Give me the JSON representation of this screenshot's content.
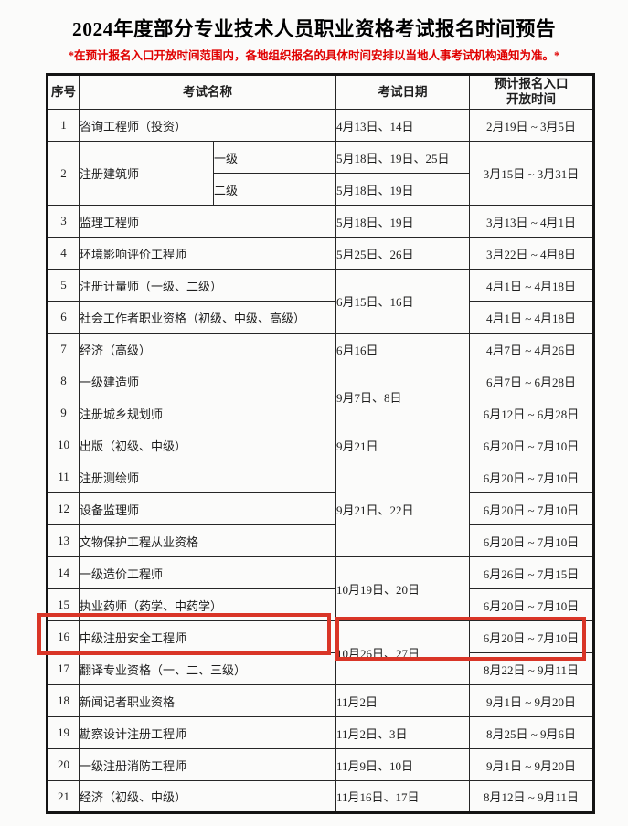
{
  "page": {
    "title": "2024年度部分专业技术人员职业资格考试报名时间预告",
    "note": "*在预计报名入口开放时间范围内，各地组织报名的具体时间安排以当地人事考试机构通知为准。*"
  },
  "colors": {
    "note_red": "#e00000",
    "highlight_red": "#d93527",
    "border_black": "#141414"
  },
  "annotations": {
    "highlighted_row_number": "16",
    "highlighted_exam": "中级注册安全工程师",
    "highlight_style": "red rectangle boxes"
  },
  "table": {
    "headers": [
      {
        "key": "index",
        "text": "序号"
      },
      {
        "key": "exam-name",
        "text": "考试名称",
        "colspan": 2
      },
      {
        "key": "exam-date",
        "text": "考试日期"
      },
      {
        "key": "registration-window",
        "text": "预计报名入口\n开放时间"
      }
    ],
    "rows": [
      {
        "cells": [
          {
            "kind": "num",
            "text": "1"
          },
          {
            "kind": "name",
            "text": "咨询工程师（投资）",
            "colspan": 2
          },
          {
            "kind": "date",
            "text": "4月13日、14日"
          },
          {
            "kind": "reg",
            "text": "2月19日 ~ 3月5日"
          }
        ]
      },
      {
        "cells": [
          {
            "kind": "num",
            "text": "2",
            "rowspan": 2
          },
          {
            "kind": "name",
            "text": "注册建筑师",
            "rowspan": 2
          },
          {
            "kind": "level",
            "text": "一级"
          },
          {
            "kind": "date",
            "text": "5月18日、19日、25日"
          },
          {
            "kind": "reg",
            "text": "3月15日 ~ 3月31日",
            "rowspan": 2
          }
        ]
      },
      {
        "cells": [
          {
            "kind": "level",
            "text": "二级"
          },
          {
            "kind": "date",
            "text": "5月18日、19日"
          }
        ]
      },
      {
        "cells": [
          {
            "kind": "num",
            "text": "3"
          },
          {
            "kind": "name",
            "text": "监理工程师",
            "colspan": 2
          },
          {
            "kind": "date",
            "text": "5月18日、19日"
          },
          {
            "kind": "reg",
            "text": "3月13日 ~ 4月1日"
          }
        ]
      },
      {
        "cells": [
          {
            "kind": "num",
            "text": "4"
          },
          {
            "kind": "name",
            "text": "环境影响评价工程师",
            "colspan": 2
          },
          {
            "kind": "date",
            "text": "5月25日、26日"
          },
          {
            "kind": "reg",
            "text": "3月22日 ~ 4月8日"
          }
        ]
      },
      {
        "cells": [
          {
            "kind": "num",
            "text": "5"
          },
          {
            "kind": "name",
            "text": "注册计量师（一级、二级）",
            "colspan": 2
          },
          {
            "kind": "date",
            "text": "6月15日、16日",
            "rowspan": 2
          },
          {
            "kind": "reg",
            "text": "4月1日 ~ 4月18日"
          }
        ]
      },
      {
        "cells": [
          {
            "kind": "num",
            "text": "6"
          },
          {
            "kind": "name",
            "text": "社会工作者职业资格（初级、中级、高级）",
            "colspan": 2
          },
          {
            "kind": "reg",
            "text": "4月1日 ~ 4月18日"
          }
        ]
      },
      {
        "cells": [
          {
            "kind": "num",
            "text": "7"
          },
          {
            "kind": "name",
            "text": "经济（高级）",
            "colspan": 2
          },
          {
            "kind": "date",
            "text": "6月16日"
          },
          {
            "kind": "reg",
            "text": "4月7日 ~ 4月26日"
          }
        ]
      },
      {
        "cells": [
          {
            "kind": "num",
            "text": "8"
          },
          {
            "kind": "name",
            "text": "一级建造师",
            "colspan": 2
          },
          {
            "kind": "date",
            "text": "9月7日、8日",
            "rowspan": 2
          },
          {
            "kind": "reg",
            "text": "6月7日 ~ 6月28日"
          }
        ]
      },
      {
        "cells": [
          {
            "kind": "num",
            "text": "9"
          },
          {
            "kind": "name",
            "text": "注册城乡规划师",
            "colspan": 2
          },
          {
            "kind": "reg",
            "text": "6月12日 ~ 6月28日"
          }
        ]
      },
      {
        "cells": [
          {
            "kind": "num",
            "text": "10"
          },
          {
            "kind": "name",
            "text": "出版（初级、中级）",
            "colspan": 2
          },
          {
            "kind": "date",
            "text": "9月21日"
          },
          {
            "kind": "reg",
            "text": "6月20日 ~ 7月10日"
          }
        ]
      },
      {
        "cells": [
          {
            "kind": "num",
            "text": "11"
          },
          {
            "kind": "name",
            "text": "注册测绘师",
            "colspan": 2
          },
          {
            "kind": "date",
            "text": "9月21日、22日",
            "rowspan": 3
          },
          {
            "kind": "reg",
            "text": "6月20日 ~ 7月10日"
          }
        ]
      },
      {
        "cells": [
          {
            "kind": "num",
            "text": "12"
          },
          {
            "kind": "name",
            "text": "设备监理师",
            "colspan": 2
          },
          {
            "kind": "reg",
            "text": "6月20日 ~ 7月10日"
          }
        ]
      },
      {
        "cells": [
          {
            "kind": "num",
            "text": "13"
          },
          {
            "kind": "name",
            "text": "文物保护工程从业资格",
            "colspan": 2
          },
          {
            "kind": "reg",
            "text": "6月20日 ~ 7月10日"
          }
        ]
      },
      {
        "cells": [
          {
            "kind": "num",
            "text": "14"
          },
          {
            "kind": "name",
            "text": "一级造价工程师",
            "colspan": 2
          },
          {
            "kind": "date",
            "text": "10月19日、20日",
            "rowspan": 2
          },
          {
            "kind": "reg",
            "text": "6月26日 ~ 7月15日"
          }
        ]
      },
      {
        "cells": [
          {
            "kind": "num",
            "text": "15"
          },
          {
            "kind": "name",
            "text": "执业药师（药学、中药学）",
            "colspan": 2
          },
          {
            "kind": "reg",
            "text": "6月20日 ~ 7月10日"
          }
        ]
      },
      {
        "cells": [
          {
            "kind": "num",
            "text": "16"
          },
          {
            "kind": "name",
            "text": "中级注册安全工程师",
            "colspan": 2
          },
          {
            "kind": "date",
            "text": "10月26日、27日",
            "rowspan": 2
          },
          {
            "kind": "reg",
            "text": "6月20日 ~ 7月10日"
          }
        ]
      },
      {
        "cells": [
          {
            "kind": "num",
            "text": "17"
          },
          {
            "kind": "name",
            "text": "翻译专业资格（一、二、三级）",
            "colspan": 2
          },
          {
            "kind": "reg",
            "text": "8月22日 ~ 9月11日"
          }
        ]
      },
      {
        "cells": [
          {
            "kind": "num",
            "text": "18"
          },
          {
            "kind": "name",
            "text": "新闻记者职业资格",
            "colspan": 2
          },
          {
            "kind": "date",
            "text": "11月2日"
          },
          {
            "kind": "reg",
            "text": "9月1日 ~ 9月20日"
          }
        ]
      },
      {
        "cells": [
          {
            "kind": "num",
            "text": "19"
          },
          {
            "kind": "name",
            "text": "勘察设计注册工程师",
            "colspan": 2
          },
          {
            "kind": "date",
            "text": "11月2日、3日"
          },
          {
            "kind": "reg",
            "text": "8月25日 ~ 9月6日"
          }
        ]
      },
      {
        "cells": [
          {
            "kind": "num",
            "text": "20"
          },
          {
            "kind": "name",
            "text": "一级注册消防工程师",
            "colspan": 2
          },
          {
            "kind": "date",
            "text": "11月9日、10日"
          },
          {
            "kind": "reg",
            "text": "9月1日 ~ 9月20日"
          }
        ]
      },
      {
        "cells": [
          {
            "kind": "num",
            "text": "21"
          },
          {
            "kind": "name",
            "text": "经济（初级、中级）",
            "colspan": 2
          },
          {
            "kind": "date",
            "text": "11月16日、17日"
          },
          {
            "kind": "reg",
            "text": "8月12日 ~ 9月11日"
          }
        ]
      }
    ]
  }
}
